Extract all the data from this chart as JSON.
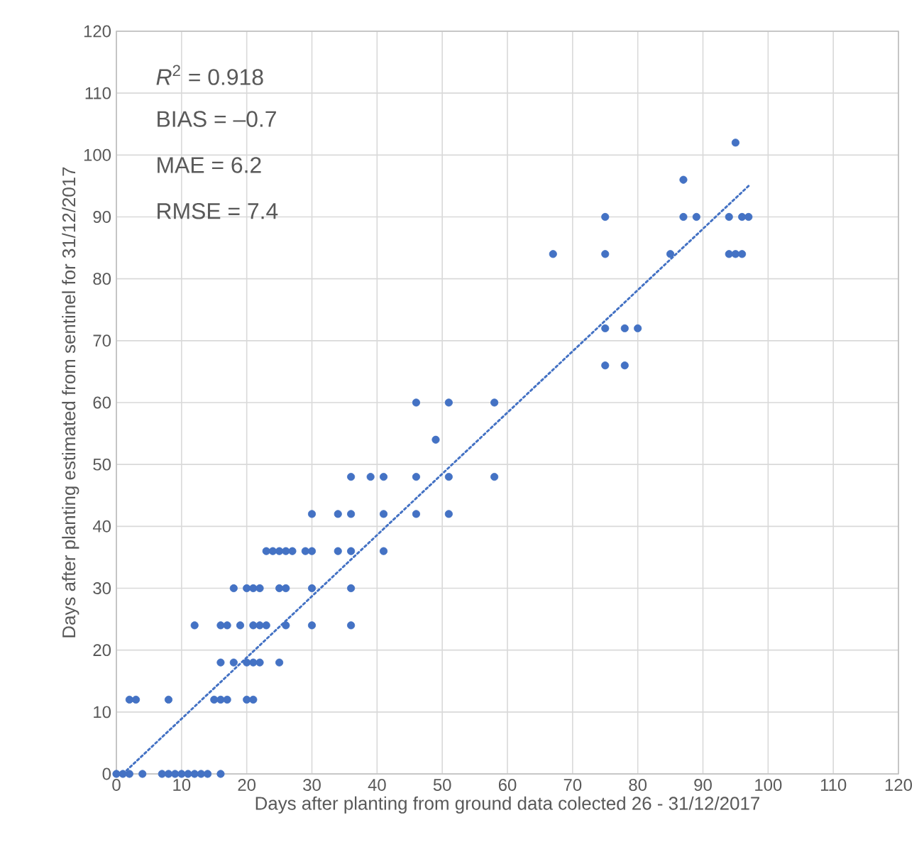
{
  "chart_data": {
    "type": "scatter",
    "xlabel": "Days after planting from ground data colected 26 - 31/12/2017",
    "ylabel": "Days after planting estimated from sentinel  for 31/12/2017",
    "annotations": [
      "*R*$^{2}$ = 0.918",
      "BIAS = –0.7",
      "MAE = 6.2",
      "RMSE = 7.4"
    ],
    "xlim": [
      0,
      120
    ],
    "ylim": [
      0,
      120
    ],
    "xticks": [
      0,
      10,
      20,
      30,
      40,
      50,
      60,
      70,
      80,
      90,
      100,
      110,
      120
    ],
    "yticks": [
      0,
      10,
      20,
      30,
      40,
      50,
      60,
      70,
      80,
      90,
      100,
      110,
      120
    ],
    "grid": true,
    "marker": "circle",
    "series": [
      {
        "color": "#4472c4",
        "x": [
          0,
          1,
          2,
          4,
          7,
          8,
          9,
          10,
          11,
          12,
          13,
          14,
          16,
          2,
          3,
          8,
          15,
          16,
          17,
          20,
          21,
          16,
          18,
          20,
          21,
          22,
          25,
          12,
          16,
          17,
          19,
          21,
          22,
          23,
          26,
          30,
          36,
          18,
          20,
          21,
          22,
          25,
          26,
          30,
          36,
          23,
          24,
          25,
          26,
          27,
          29,
          30,
          34,
          36,
          41,
          30,
          34,
          36,
          41,
          46,
          51,
          36,
          39,
          41,
          46,
          51,
          58,
          49,
          46,
          51,
          58,
          75,
          78,
          75,
          78,
          80,
          67,
          75,
          85,
          94,
          95,
          96,
          75,
          87,
          89,
          94,
          96,
          97,
          87,
          95
        ],
        "values": [
          0,
          0,
          0,
          0,
          0,
          0,
          0,
          0,
          0,
          0,
          0,
          0,
          0,
          12,
          12,
          12,
          12,
          12,
          12,
          12,
          12,
          18,
          18,
          18,
          18,
          18,
          18,
          24,
          24,
          24,
          24,
          24,
          24,
          24,
          24,
          24,
          24,
          30,
          30,
          30,
          30,
          30,
          30,
          30,
          30,
          36,
          36,
          36,
          36,
          36,
          36,
          36,
          36,
          36,
          36,
          42,
          42,
          42,
          42,
          42,
          42,
          48,
          48,
          48,
          48,
          48,
          48,
          54,
          60,
          60,
          60,
          66,
          66,
          72,
          72,
          72,
          84,
          84,
          84,
          84,
          84,
          84,
          90,
          90,
          90,
          90,
          90,
          90,
          96,
          102
        ]
      },
      {
        "type": "line",
        "color": "#4472c4",
        "line_style": "dotted",
        "marker": "none",
        "x": [
          1,
          97
        ],
        "values": [
          0,
          95
        ]
      }
    ]
  }
}
